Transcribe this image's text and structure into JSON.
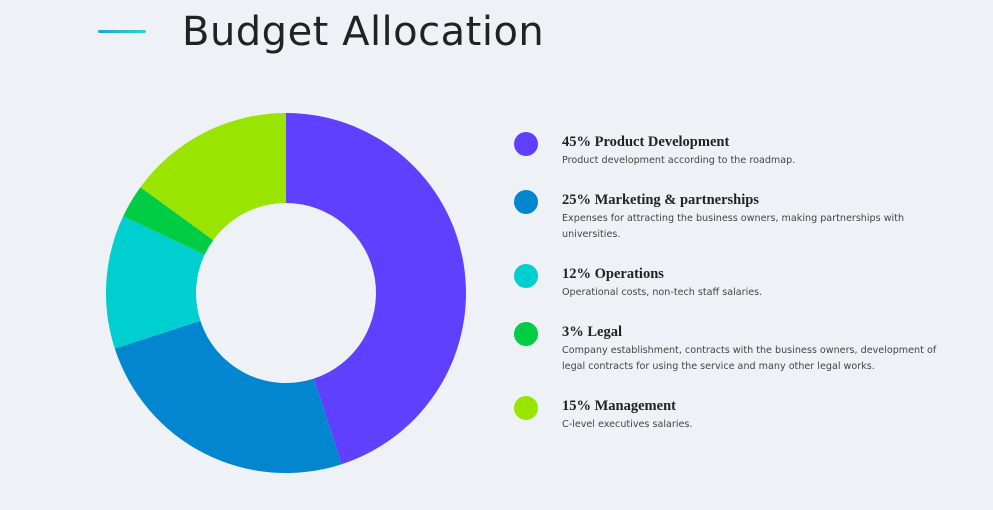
{
  "title": "Budget Allocation",
  "chart_data": {
    "type": "pie",
    "donut": true,
    "title": "Budget Allocation",
    "slices": [
      {
        "label": "Product Development",
        "percent_label": "45%",
        "value": 45,
        "color": "#5f40ff",
        "description": "Product development according to the roadmap."
      },
      {
        "label": "Marketing & partnerships",
        "percent_label": "25%",
        "value": 25,
        "color": "#0286d0",
        "description": "Expenses for attracting the business owners, making partnerships with universities."
      },
      {
        "label": "Operations",
        "percent_label": "12%",
        "value": 12,
        "color": "#00cfcf",
        "description": "Operational costs, non-tech staff salaries."
      },
      {
        "label": "Legal",
        "percent_label": "3%",
        "value": 3,
        "color": "#00cc44",
        "description": "Company establishment, contracts with the business owners, development of legal contracts for using the service and many other legal works."
      },
      {
        "label": "Management",
        "percent_label": "15%",
        "value": 15,
        "color": "#99e500",
        "description": "C-level executives salaries."
      }
    ]
  }
}
